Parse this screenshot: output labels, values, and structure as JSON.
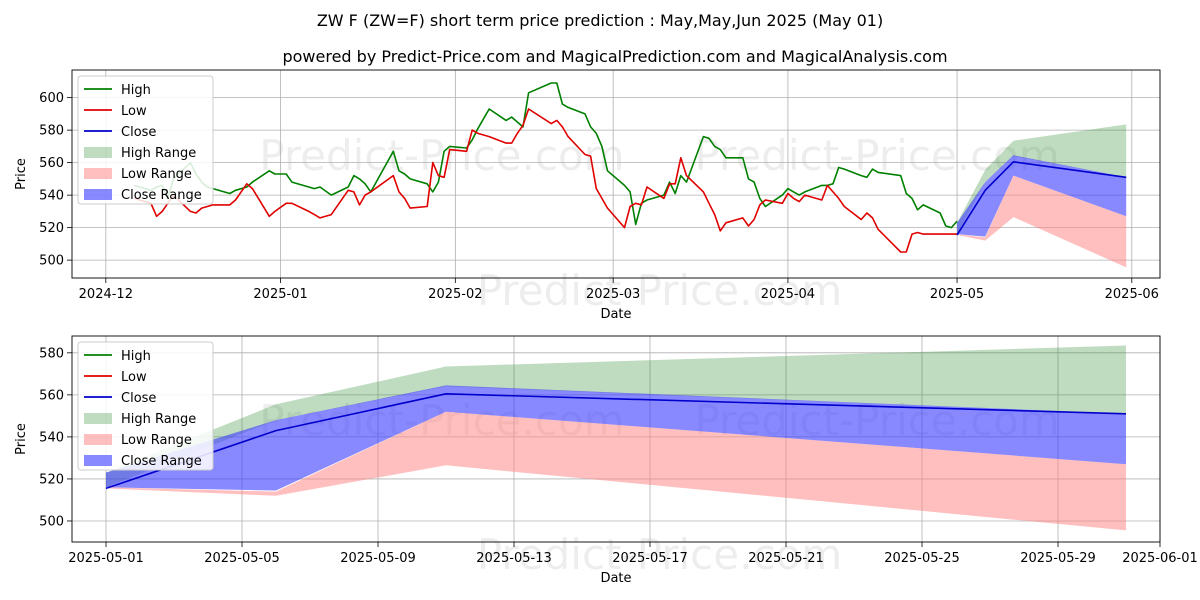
{
  "title": "ZW F (ZW=F) short term price prediction : May,May,Jun 2025 (May 01)",
  "subtitle": "powered by Predict-Price.com and MagicalPrediction.com and MagicalAnalysis.com",
  "watermark": "Predict-Price.com",
  "colors": {
    "high": "#008000",
    "low": "#e00000",
    "close": "#0000cc",
    "high_range": "#2e8b2e",
    "low_range": "#ff8080",
    "close_range": "#3a3aff",
    "grid": "#b0b0b0"
  },
  "legend_labels": [
    "High",
    "Low",
    "Close",
    "High Range",
    "Low Range",
    "Close Range"
  ],
  "legend_placement": "top-left",
  "grid": true,
  "chart_data": [
    {
      "type": "line",
      "xlabel": "Date",
      "ylabel": "Price",
      "xlim": [
        "2024-11-25",
        "2025-06-06"
      ],
      "ylim": [
        489,
        617
      ],
      "x_ticks": [
        "2024-12-01",
        "2025-01-01",
        "2025-02-01",
        "2025-03-01",
        "2025-04-01",
        "2025-05-01",
        "2025-06-01"
      ],
      "x_tick_labels": [
        "2024-12",
        "2025-01",
        "2025-02",
        "2025-03",
        "2025-04",
        "2025-05",
        "2025-06"
      ],
      "y_ticks": [
        500,
        520,
        540,
        560,
        580,
        600
      ],
      "series": [
        {
          "name": "High",
          "x": [
            "2024-12-06",
            "2024-12-09",
            "2024-12-10",
            "2024-12-11",
            "2024-12-12",
            "2024-12-13",
            "2024-12-16",
            "2024-12-17",
            "2024-12-18",
            "2024-12-19",
            "2024-12-20",
            "2024-12-23",
            "2024-12-24",
            "2024-12-26",
            "2024-12-27",
            "2024-12-30",
            "2024-12-31",
            "2025-01-02",
            "2025-01-03",
            "2025-01-06",
            "2025-01-07",
            "2025-01-08",
            "2025-01-10",
            "2025-01-13",
            "2025-01-14",
            "2025-01-15",
            "2025-01-16",
            "2025-01-17",
            "2025-01-21",
            "2025-01-22",
            "2025-01-23",
            "2025-01-24",
            "2025-01-27",
            "2025-01-28",
            "2025-01-29",
            "2025-01-30",
            "2025-01-31",
            "2025-02-03",
            "2025-02-04",
            "2025-02-05",
            "2025-02-06",
            "2025-02-07",
            "2025-02-10",
            "2025-02-11",
            "2025-02-12",
            "2025-02-13",
            "2025-02-14",
            "2025-02-18",
            "2025-02-19",
            "2025-02-20",
            "2025-02-21",
            "2025-02-24",
            "2025-02-25",
            "2025-02-26",
            "2025-02-27",
            "2025-02-28",
            "2025-03-03",
            "2025-03-04",
            "2025-03-05",
            "2025-03-06",
            "2025-03-07",
            "2025-03-10",
            "2025-03-11",
            "2025-03-12",
            "2025-03-13",
            "2025-03-14",
            "2025-03-17",
            "2025-03-18",
            "2025-03-19",
            "2025-03-20",
            "2025-03-21",
            "2025-03-24",
            "2025-03-25",
            "2025-03-26",
            "2025-03-27",
            "2025-03-28",
            "2025-03-31",
            "2025-04-01",
            "2025-04-02",
            "2025-04-03",
            "2025-04-04",
            "2025-04-07",
            "2025-04-08",
            "2025-04-09",
            "2025-04-10",
            "2025-04-11",
            "2025-04-14",
            "2025-04-15",
            "2025-04-16",
            "2025-04-17",
            "2025-04-21",
            "2025-04-22",
            "2025-04-23",
            "2025-04-24",
            "2025-04-25",
            "2025-04-28",
            "2025-04-29",
            "2025-04-30",
            "2025-05-01"
          ],
          "values": [
            546,
            543,
            545,
            546,
            538,
            550,
            560,
            553,
            548,
            545,
            544,
            541,
            543,
            545,
            548,
            555,
            553,
            553,
            548,
            545,
            544,
            545,
            540,
            545,
            552,
            550,
            547,
            542,
            567,
            555,
            553,
            550,
            547,
            542,
            548,
            567,
            570,
            569,
            574,
            581,
            587,
            593,
            586,
            588,
            585,
            582,
            603,
            609,
            609,
            596,
            594,
            590,
            582,
            578,
            570,
            555,
            546,
            542,
            522,
            535,
            537,
            540,
            548,
            541,
            552,
            548,
            576,
            575,
            570,
            568,
            563,
            563,
            550,
            548,
            538,
            533,
            540,
            544,
            542,
            540,
            542,
            546,
            546,
            547,
            557,
            556,
            552,
            551,
            556,
            554,
            552,
            541,
            538,
            531,
            534,
            529,
            521,
            520,
            524
          ]
        },
        {
          "name": "Low",
          "x": [
            "2024-12-06",
            "2024-12-09",
            "2024-12-10",
            "2024-12-11",
            "2024-12-12",
            "2024-12-13",
            "2024-12-16",
            "2024-12-17",
            "2024-12-18",
            "2024-12-19",
            "2024-12-20",
            "2024-12-23",
            "2024-12-24",
            "2024-12-26",
            "2024-12-27",
            "2024-12-30",
            "2024-12-31",
            "2025-01-02",
            "2025-01-03",
            "2025-01-06",
            "2025-01-07",
            "2025-01-08",
            "2025-01-10",
            "2025-01-13",
            "2025-01-14",
            "2025-01-15",
            "2025-01-16",
            "2025-01-17",
            "2025-01-21",
            "2025-01-22",
            "2025-01-23",
            "2025-01-24",
            "2025-01-27",
            "2025-01-28",
            "2025-01-29",
            "2025-01-30",
            "2025-01-31",
            "2025-02-03",
            "2025-02-04",
            "2025-02-05",
            "2025-02-06",
            "2025-02-07",
            "2025-02-10",
            "2025-02-11",
            "2025-02-12",
            "2025-02-13",
            "2025-02-14",
            "2025-02-18",
            "2025-02-19",
            "2025-02-20",
            "2025-02-21",
            "2025-02-24",
            "2025-02-25",
            "2025-02-26",
            "2025-02-27",
            "2025-02-28",
            "2025-03-03",
            "2025-03-04",
            "2025-03-05",
            "2025-03-06",
            "2025-03-07",
            "2025-03-10",
            "2025-03-11",
            "2025-03-12",
            "2025-03-13",
            "2025-03-14",
            "2025-03-17",
            "2025-03-18",
            "2025-03-19",
            "2025-03-20",
            "2025-03-21",
            "2025-03-24",
            "2025-03-25",
            "2025-03-26",
            "2025-03-27",
            "2025-03-28",
            "2025-03-31",
            "2025-04-01",
            "2025-04-02",
            "2025-04-03",
            "2025-04-04",
            "2025-04-07",
            "2025-04-08",
            "2025-04-09",
            "2025-04-10",
            "2025-04-11",
            "2025-04-14",
            "2025-04-15",
            "2025-04-16",
            "2025-04-17",
            "2025-04-21",
            "2025-04-22",
            "2025-04-23",
            "2025-04-24",
            "2025-04-25",
            "2025-04-28",
            "2025-04-29",
            "2025-04-30",
            "2025-05-01"
          ],
          "values": [
            538,
            535,
            527,
            530,
            535,
            540,
            530,
            529,
            532,
            533,
            534,
            534,
            537,
            547,
            544,
            527,
            530,
            535,
            535,
            530,
            528,
            526,
            528,
            543,
            542,
            534,
            540,
            542,
            552,
            542,
            538,
            532,
            533,
            560,
            552,
            551,
            568,
            567,
            580,
            578,
            577,
            576,
            572,
            572,
            578,
            583,
            593,
            584,
            586,
            582,
            576,
            565,
            564,
            544,
            538,
            532,
            520,
            533,
            535,
            534,
            545,
            538,
            547,
            547,
            563,
            552,
            542,
            535,
            528,
            518,
            523,
            526,
            521,
            525,
            534,
            537,
            535,
            541,
            538,
            536,
            540,
            537,
            546,
            542,
            538,
            533,
            525,
            529,
            526,
            519,
            505,
            505,
            516,
            517,
            516,
            516,
            516,
            516,
            516
          ]
        },
        {
          "name": "Close",
          "x": [
            "2025-05-01",
            "2025-05-06",
            "2025-05-11",
            "2025-05-31"
          ],
          "values": [
            515.5,
            543,
            560.5,
            551
          ]
        },
        {
          "name": "High Range",
          "x": [
            "2025-05-01",
            "2025-05-06",
            "2025-05-11",
            "2025-05-31"
          ],
          "upper": [
            523,
            555.5,
            573.5,
            583.5
          ],
          "lower": [
            516,
            548,
            564,
            551
          ]
        },
        {
          "name": "Low Range",
          "x": [
            "2025-05-01",
            "2025-05-06",
            "2025-05-11",
            "2025-05-31"
          ],
          "upper": [
            516,
            514,
            552,
            527
          ],
          "lower": [
            515.5,
            512,
            526.5,
            495.5
          ]
        },
        {
          "name": "Close Range",
          "x": [
            "2025-05-01",
            "2025-05-06",
            "2025-05-11",
            "2025-05-31"
          ],
          "upper": [
            523,
            548,
            564.5,
            551
          ],
          "lower": [
            516,
            514.5,
            552,
            527
          ]
        }
      ]
    },
    {
      "type": "line",
      "xlabel": "Date",
      "ylabel": "Price",
      "xlim": [
        "2025-04-30",
        "2025-06-01"
      ],
      "ylim": [
        490,
        588
      ],
      "x_ticks": [
        "2025-05-01",
        "2025-05-05",
        "2025-05-09",
        "2025-05-13",
        "2025-05-17",
        "2025-05-21",
        "2025-05-25",
        "2025-05-29",
        "2025-06-01"
      ],
      "x_tick_labels": [
        "2025-05-01",
        "2025-05-05",
        "2025-05-09",
        "2025-05-13",
        "2025-05-17",
        "2025-05-21",
        "2025-05-25",
        "2025-05-29",
        "2025-06-01"
      ],
      "y_ticks": [
        500,
        520,
        540,
        560,
        580
      ],
      "series": [
        {
          "name": "Close",
          "x": [
            "2025-05-01",
            "2025-05-06",
            "2025-05-11",
            "2025-05-31"
          ],
          "values": [
            515.5,
            543,
            560.5,
            551
          ]
        },
        {
          "name": "High Range",
          "x": [
            "2025-05-01",
            "2025-05-06",
            "2025-05-11",
            "2025-05-31"
          ],
          "upper": [
            523,
            555.5,
            573.5,
            583.5
          ],
          "lower": [
            516,
            548,
            564,
            551
          ]
        },
        {
          "name": "Low Range",
          "x": [
            "2025-05-01",
            "2025-05-06",
            "2025-05-11",
            "2025-05-31"
          ],
          "upper": [
            516,
            514,
            552,
            527
          ],
          "lower": [
            515.5,
            512,
            526.5,
            495.5
          ]
        },
        {
          "name": "Close Range",
          "x": [
            "2025-05-01",
            "2025-05-06",
            "2025-05-11",
            "2025-05-31"
          ],
          "upper": [
            523,
            548,
            564.5,
            551
          ],
          "lower": [
            516,
            514.5,
            552,
            527
          ]
        }
      ]
    }
  ]
}
